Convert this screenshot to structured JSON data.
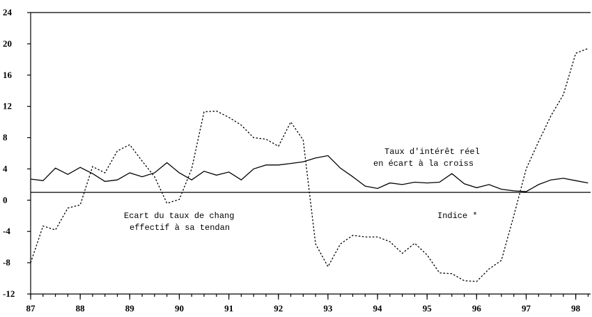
{
  "chart_data": {
    "type": "line",
    "x": [
      87,
      87.25,
      87.5,
      87.75,
      88,
      88.25,
      88.5,
      88.75,
      89,
      89.25,
      89.5,
      89.75,
      90,
      90.25,
      90.5,
      90.75,
      91,
      91.25,
      91.5,
      91.75,
      92,
      92.25,
      92.5,
      92.75,
      93,
      93.25,
      93.5,
      93.75,
      94,
      94.25,
      94.5,
      94.75,
      95,
      95.25,
      95.5,
      95.75,
      96,
      96.25,
      96.5,
      96.75,
      97,
      97.25,
      97.5,
      97.75,
      98,
      98.25
    ],
    "series": [
      {
        "color": "#000000",
        "dash": false,
        "values": [
          2.7,
          2.5,
          4.1,
          3.3,
          4.2,
          3.4,
          2.4,
          2.6,
          3.5,
          3.0,
          3.5,
          4.8,
          3.5,
          2.6,
          3.7,
          3.2,
          3.6,
          2.6,
          4.0,
          4.5,
          4.5,
          4.7,
          4.9,
          5.4,
          5.7,
          4.1,
          3.0,
          1.8,
          1.5,
          2.2,
          2.0,
          2.3,
          2.2,
          2.3,
          3.4,
          2.1,
          1.6,
          2.0,
          1.4,
          1.2,
          1.1,
          2.0,
          2.6,
          2.8,
          2.5,
          2.2
        ]
      },
      {
        "color": "#000000",
        "dash": true,
        "values": [
          -8.0,
          -3.3,
          -3.8,
          -1.0,
          -0.6,
          4.3,
          3.5,
          6.3,
          7.1,
          5.0,
          3.0,
          -0.4,
          0.1,
          4.0,
          11.3,
          11.4,
          10.6,
          9.6,
          8.0,
          7.8,
          6.9,
          10.0,
          7.7,
          -5.6,
          -8.5,
          -5.6,
          -4.5,
          -4.7,
          -4.7,
          -5.3,
          -6.8,
          -5.5,
          -7.0,
          -9.3,
          -9.4,
          -10.3,
          -10.4,
          -8.8,
          -7.7,
          -2.0,
          4.0,
          7.5,
          10.8,
          13.5,
          18.8,
          19.4
        ]
      }
    ],
    "reference_line": 1,
    "annotations": [
      [
        "Taux d'intérêt réel",
        "en écart à la croiss"
      ],
      [
        "Ecart du taux de chang",
        "effectif à sa tendan"
      ],
      [
        "Indice *"
      ]
    ],
    "xlim": [
      87,
      98.3
    ],
    "xticks": [
      87,
      88,
      89,
      90,
      91,
      92,
      93,
      94,
      95,
      96,
      97,
      98
    ],
    "ylim": [
      -12,
      24
    ],
    "yticks": [
      -12,
      -8,
      -4,
      0,
      4,
      8,
      12,
      16,
      20,
      24
    ],
    "grid": false
  }
}
